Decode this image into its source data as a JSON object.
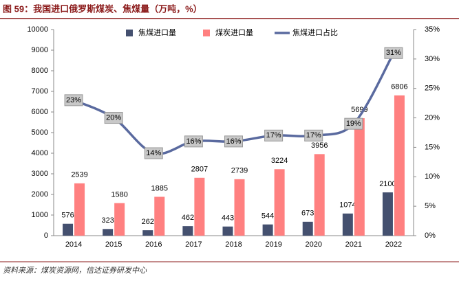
{
  "chart_data": {
    "type": "bar_line",
    "title": "图 59：我国进口俄罗斯煤炭、焦煤量（万吨，%）",
    "source": "资料来源：煤炭资源网，信达证券研发中心",
    "categories": [
      "2014",
      "2015",
      "2016",
      "2017",
      "2018",
      "2019",
      "2020",
      "2021",
      "2022"
    ],
    "series": [
      {
        "name": "焦煤进口量",
        "color": "#44506f",
        "values": [
          576,
          323,
          262,
          462,
          443,
          544,
          673,
          1074,
          2100
        ]
      },
      {
        "name": "煤炭进口量",
        "color": "#ff8080",
        "values": [
          2539,
          1580,
          1885,
          2807,
          2739,
          3224,
          3956,
          5699,
          6806
        ]
      },
      {
        "name": "焦煤进口占比",
        "color": "#5a6a9f",
        "axis": "y2",
        "values": [
          23,
          20,
          14,
          16,
          16,
          17,
          17,
          19,
          31
        ],
        "value_labels": [
          "23%",
          "20%",
          "14%",
          "16%",
          "16%",
          "17%",
          "17%",
          "19%",
          "31%"
        ]
      }
    ],
    "ylim": [
      0,
      10000
    ],
    "yticks": [
      0,
      1000,
      2000,
      3000,
      4000,
      5000,
      6000,
      7000,
      8000,
      9000,
      10000
    ],
    "y2lim": [
      0,
      35
    ],
    "y2ticks": [
      {
        "value": 0,
        "label": "0%"
      },
      {
        "value": 5,
        "label": "5%"
      },
      {
        "value": 10,
        "label": "10%"
      },
      {
        "value": 15,
        "label": "15%"
      },
      {
        "value": 20,
        "label": "20%"
      },
      {
        "value": 25,
        "label": "25%"
      },
      {
        "value": 30,
        "label": "30%"
      },
      {
        "value": 35,
        "label": "35%"
      }
    ],
    "legend": "top"
  }
}
